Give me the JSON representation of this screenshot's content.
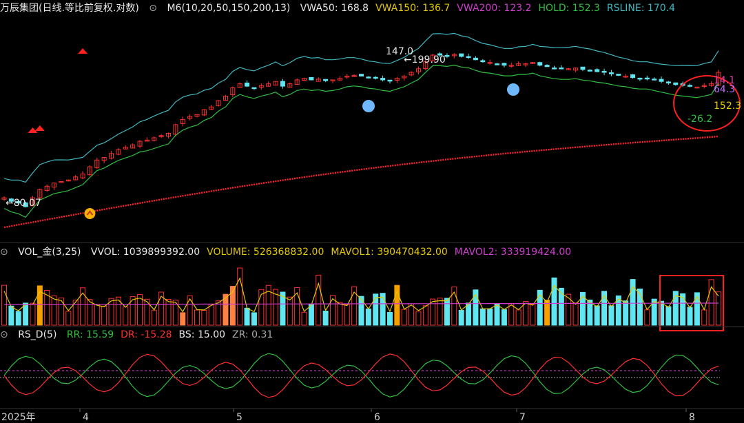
{
  "header_main": {
    "title": "万辰集团(日线.等比前复权.对数)",
    "indicator": "M6(10,20,50,150,200,13)",
    "items": [
      {
        "label": "VWA50: 168.8",
        "color": "#e8e8e8"
      },
      {
        "label": "VWA150: 136.7",
        "color": "#e5c800"
      },
      {
        "label": "VWA200: 123.2",
        "color": "#d03cd0"
      },
      {
        "label": "HOLD: 152.3",
        "color": "#2fbf3f"
      },
      {
        "label": "RSLINE: 170.4",
        "color": "#3fb8c0"
      }
    ]
  },
  "header_vol": {
    "title": "VOL_金(3,25)",
    "items": [
      {
        "label": "VVOL: 1039899392.00",
        "color": "#e8e8e8"
      },
      {
        "label": "VOLUME: 526368832.00",
        "color": "#e5c800"
      },
      {
        "label": "MAVOL1: 390470432.00",
        "color": "#e5c800"
      },
      {
        "label": "MAVOL2: 333919424.00",
        "color": "#d03cd0"
      }
    ]
  },
  "header_rs": {
    "title": "RS_D(5)",
    "items": [
      {
        "label": "RR: 15.59",
        "color": "#2fbf3f"
      },
      {
        "label": "DR: -15.28",
        "color": "#ff3030"
      },
      {
        "label": "BS: 15.00",
        "color": "#e8e8e8"
      },
      {
        "label": "ZR: 0.31",
        "color": "#aaaaaa"
      }
    ]
  },
  "annotations": {
    "low": "80.07",
    "high": "147.0",
    "high2": "199.90",
    "v141": "14.1",
    "v643": "64.3",
    "v1523": "152.3",
    "v262": "-26.2"
  },
  "chart_data": {
    "type": "candlestick",
    "x_axis_labels": [
      "2025年",
      "4",
      "5",
      "6",
      "7",
      "8"
    ],
    "price_scale": "log",
    "closes": [
      85,
      83,
      82,
      80,
      85,
      90,
      92,
      94,
      95,
      96,
      98,
      100,
      105,
      110,
      112,
      115,
      118,
      120,
      122,
      125,
      126,
      128,
      130,
      132,
      140,
      145,
      148,
      150,
      155,
      158,
      165,
      170,
      180,
      185,
      182,
      180,
      183,
      185,
      188,
      182,
      185,
      190,
      192,
      190,
      191,
      189,
      190,
      192,
      195,
      196,
      195,
      193,
      192,
      190,
      189,
      192,
      195,
      200,
      205,
      215,
      225,
      225,
      224,
      226,
      223,
      222,
      218,
      215,
      214,
      212,
      210,
      210,
      212,
      212,
      214,
      210,
      208,
      206,
      205,
      205,
      206,
      204,
      203,
      201,
      200,
      198,
      196,
      195,
      193,
      192,
      192,
      190,
      188,
      186,
      184,
      183,
      182,
      181,
      183,
      185,
      200
    ],
    "volume_series": "VOLUME",
    "rs_series": [
      "RR",
      "DR",
      "BS",
      "ZR"
    ],
    "colors": {
      "up": "#ff3030",
      "down": "#5fe6f0",
      "vwa200": "#ff2030",
      "hold": "#2fbf3f",
      "rsline": "#3fb8c0",
      "vol_ma1": "#e5c800",
      "vol_ma2": "#d03cd0"
    }
  }
}
